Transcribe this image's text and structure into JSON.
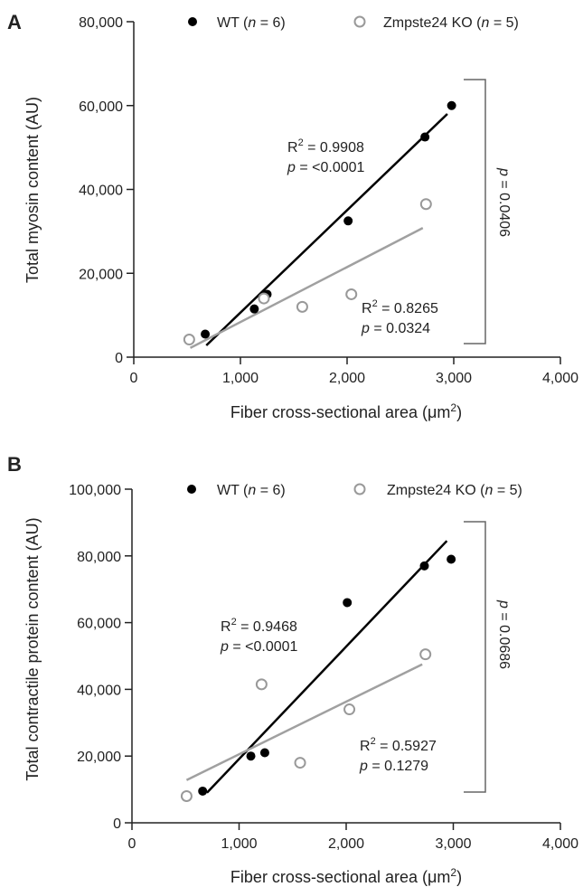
{
  "chart_data": [
    {
      "panel": "A",
      "type": "scatter",
      "xlabel_main": "Fiber cross-sectional area (",
      "xlabel_unit": "μm",
      "xlabel_sup": "2",
      "xlabel_close": ")",
      "ylabel": "Total myosin content (AU)",
      "xlim": [
        0,
        4000
      ],
      "ylim": [
        0,
        80000
      ],
      "xticks": [
        0,
        1000,
        2000,
        3000,
        4000
      ],
      "xtick_labels": [
        "0",
        "1,000",
        "2,000",
        "3,000",
        "4,000"
      ],
      "yticks": [
        0,
        20000,
        40000,
        60000,
        80000
      ],
      "ytick_labels": [
        "0",
        "20,000",
        "40,000",
        "60,000",
        "80,000"
      ],
      "legend_position": "top",
      "series": [
        {
          "legend_text": "WT (",
          "legend_n": "n",
          "legend_rest": " = 6)",
          "marker": "filled",
          "color": "#000000",
          "points": [
            [
              670,
              5500
            ],
            [
              1130,
              11500
            ],
            [
              1250,
              15000
            ],
            [
              2010,
              32500
            ],
            [
              2730,
              52500
            ],
            [
              2980,
              60000
            ]
          ],
          "fit": [
            [
              680,
              2800
            ],
            [
              2940,
              58000
            ]
          ],
          "r2_label": "R",
          "r2_sup": "2",
          "r2_value": " = 0.9908",
          "p_label": "p",
          "p_value": " = <0.0001"
        },
        {
          "legend_text": "Zmpste24 KO (",
          "legend_n": "n",
          "legend_rest": " = 5)",
          "marker": "open",
          "color": "#999999",
          "points": [
            [
              520,
              4200
            ],
            [
              1220,
              14000
            ],
            [
              1580,
              12000
            ],
            [
              2040,
              15000
            ],
            [
              2740,
              36500
            ]
          ],
          "fit": [
            [
              530,
              2200
            ],
            [
              2710,
              30800
            ]
          ],
          "r2_label": "R",
          "r2_sup": "2",
          "r2_value": " = 0.8265",
          "p_label": "p",
          "p_value": " = 0.0324"
        }
      ],
      "bracket": {
        "y_top": 66000,
        "y_bottom": 3000,
        "p_label": "p",
        "p_value": " = 0.0406"
      }
    },
    {
      "panel": "B",
      "type": "scatter",
      "xlabel_main": "Fiber cross-sectional area (",
      "xlabel_unit": "μm",
      "xlabel_sup": "2",
      "xlabel_close": ")",
      "ylabel": "Total contractile protein content (AU)",
      "xlim": [
        0,
        4000
      ],
      "ylim": [
        0,
        100000
      ],
      "xticks": [
        0,
        1000,
        2000,
        3000,
        4000
      ],
      "xtick_labels": [
        "0",
        "1,000",
        "2,000",
        "3,000",
        "4,000"
      ],
      "yticks": [
        0,
        20000,
        40000,
        60000,
        80000,
        100000
      ],
      "ytick_labels": [
        "0",
        "20,000",
        "40,000",
        "60,000",
        "80,000",
        "100,000"
      ],
      "legend_position": "top",
      "series": [
        {
          "legend_text": "WT (",
          "legend_n": "n",
          "legend_rest": " = 6)",
          "marker": "filled",
          "color": "#000000",
          "points": [
            [
              660,
              9500
            ],
            [
              1110,
              20000
            ],
            [
              1240,
              21000
            ],
            [
              2010,
              66000
            ],
            [
              2730,
              77000
            ],
            [
              2980,
              79000
            ]
          ],
          "fit": [
            [
              700,
              9000
            ],
            [
              2940,
              84500
            ]
          ],
          "r2_label": "R",
          "r2_sup": "2",
          "r2_value": " = 0.9468",
          "p_label": "p",
          "p_value": " = <0.0001"
        },
        {
          "legend_text": "Zmpste24 KO (",
          "legend_n": "n",
          "legend_rest": " = 5)",
          "marker": "open",
          "color": "#999999",
          "points": [
            [
              510,
              8000
            ],
            [
              1210,
              41500
            ],
            [
              1570,
              18000
            ],
            [
              2030,
              34000
            ],
            [
              2740,
              50500
            ]
          ],
          "fit": [
            [
              510,
              12800
            ],
            [
              2710,
              47500
            ]
          ],
          "r2_label": "R",
          "r2_sup": "2",
          "r2_value": " = 0.5927",
          "p_label": "p",
          "p_value": " = 0.1279"
        }
      ],
      "bracket": {
        "y_top": 90000,
        "y_bottom": 9000,
        "p_label": "p",
        "p_value": " = 0.0686"
      }
    }
  ]
}
